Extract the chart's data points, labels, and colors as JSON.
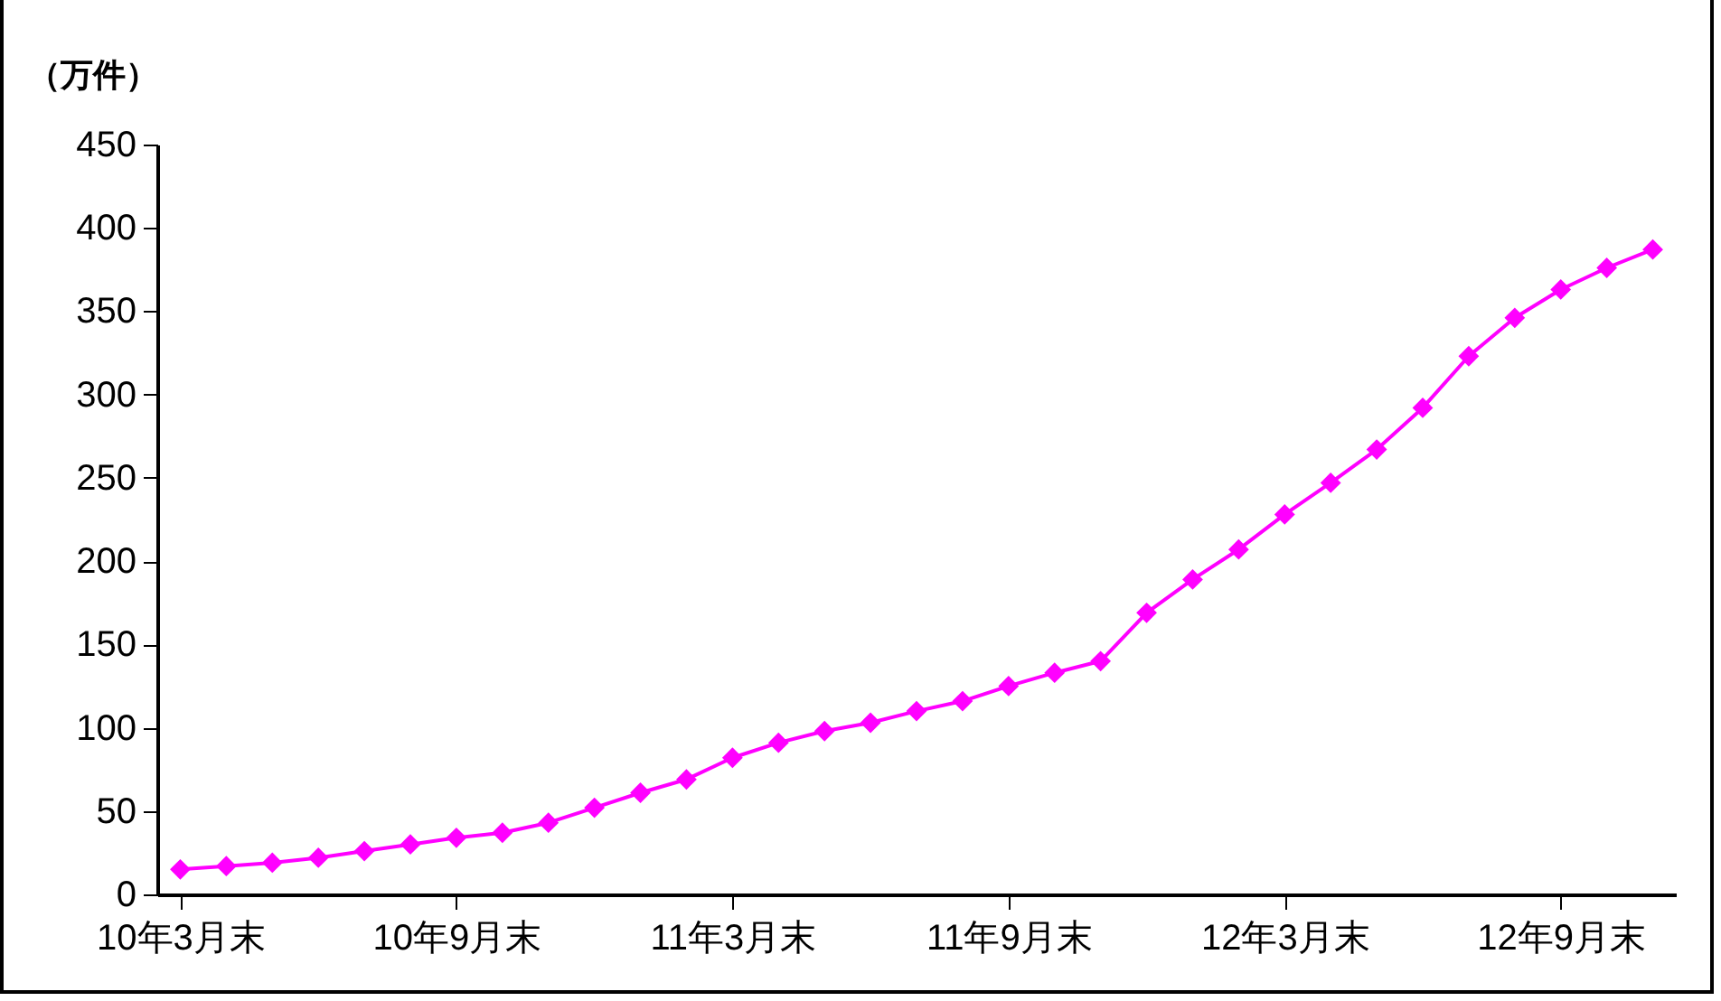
{
  "chart_data": {
    "type": "line",
    "ylabel": "（万件）",
    "categories": [
      "10年3月末",
      null,
      null,
      null,
      null,
      null,
      "10年9月末",
      null,
      null,
      null,
      null,
      null,
      "11年3月末",
      null,
      null,
      null,
      null,
      null,
      "11年9月末",
      null,
      null,
      null,
      null,
      null,
      "12年3月末",
      null,
      null,
      null,
      null,
      null,
      "12年9月末",
      null,
      null
    ],
    "series": [
      {
        "color": "#ff00ff",
        "values": [
          15,
          17,
          19,
          22,
          26,
          30,
          34,
          37,
          43,
          52,
          61,
          69,
          82,
          91,
          98,
          103,
          110,
          116,
          125,
          133,
          140,
          169,
          189,
          207,
          228,
          247,
          267,
          292,
          323,
          346,
          363,
          376,
          387
        ]
      }
    ],
    "ylim": [
      0,
      450
    ],
    "yticks": [
      0,
      50,
      100,
      150,
      200,
      250,
      300,
      350,
      400,
      450
    ],
    "grid": false,
    "marker": "diamond",
    "line_style": "solid"
  }
}
